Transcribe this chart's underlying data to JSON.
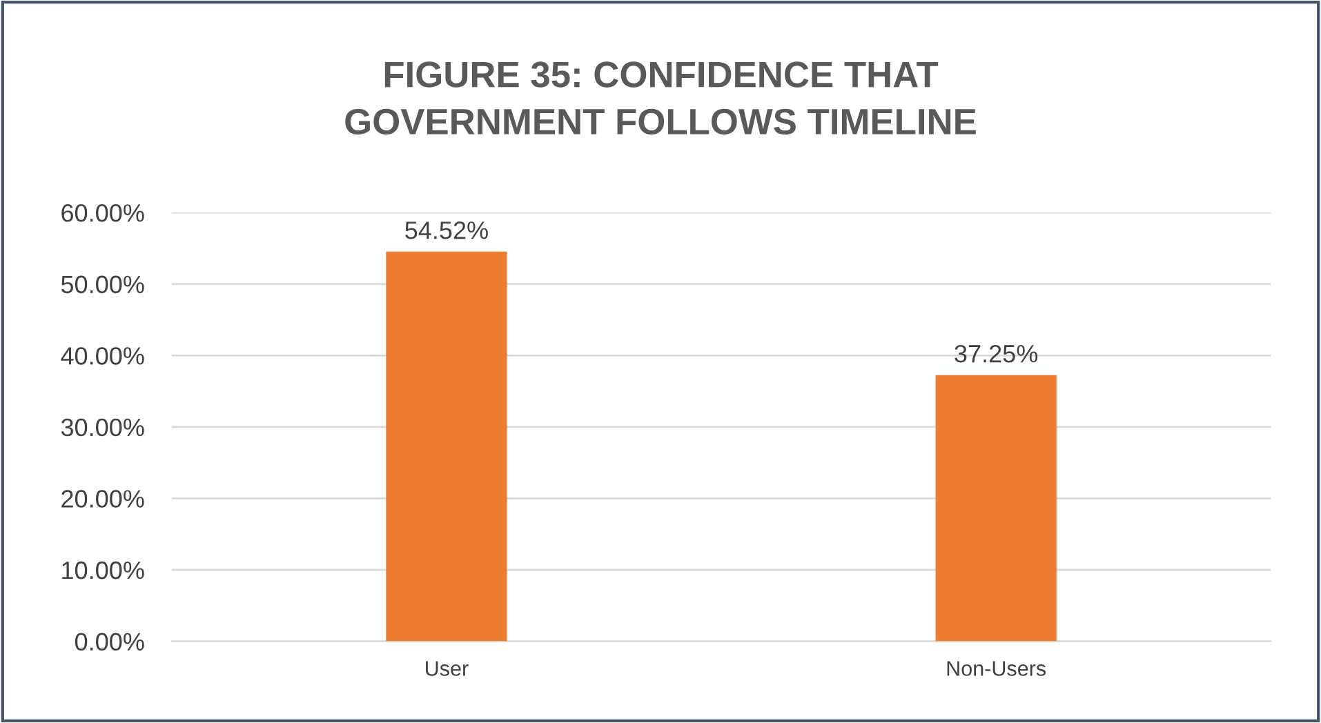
{
  "chart_data": {
    "type": "bar",
    "title": "FIGURE 35: CONFIDENCE THAT\nGOVERNMENT FOLLOWS TIMELINE",
    "categories": [
      "User",
      "Non-Users"
    ],
    "values": [
      54.52,
      37.25
    ],
    "value_labels": [
      "54.52%",
      "37.25%"
    ],
    "color": "#ed7d31",
    "ylim": [
      0,
      60
    ],
    "yticks": [
      {
        "value": 0,
        "label": "0.00%"
      },
      {
        "value": 10,
        "label": "10.00%"
      },
      {
        "value": 20,
        "label": "20.00%"
      },
      {
        "value": 30,
        "label": "30.00%"
      },
      {
        "value": 40,
        "label": "40.00%"
      },
      {
        "value": 50,
        "label": "50.00%"
      },
      {
        "value": 60,
        "label": "60.00%"
      }
    ],
    "grid": "y"
  }
}
